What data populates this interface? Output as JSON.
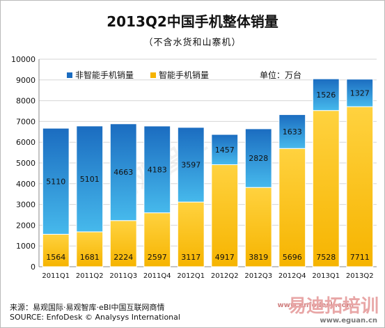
{
  "title": "2013Q2中国手机整体销量",
  "subtitle": "（不含水货和山寨机）",
  "unit_label": "单位：万台",
  "source_cn": "来源：易观国际·易观智库·eBI中国互联网商情",
  "source_en": "SOURCE: EnfoDesk © Analysys International",
  "watermark_text": "易观智库",
  "watermark_logo": "易迪拓培训",
  "watermark_url_top": "www.enfodesk.com",
  "watermark_url": "www.eguan.cn",
  "colors": {
    "smart_top": "#ffd23f",
    "smart_bottom": "#f6b400",
    "nonsmart_top": "#1b6cc0",
    "nonsmart_bottom": "#46b9ec",
    "grid": "#d6d6d6"
  },
  "chart_data": {
    "type": "bar",
    "stacked": true,
    "categories": [
      "2011Q1",
      "2011Q2",
      "2011Q3",
      "2011Q4",
      "2012Q1",
      "2012Q2",
      "2012Q3",
      "2012Q4",
      "2013Q1",
      "2013Q2"
    ],
    "series": [
      {
        "name": "智能手机销量",
        "values": [
          1564,
          1681,
          2224,
          2597,
          3117,
          4917,
          3819,
          5696,
          7528,
          7711
        ]
      },
      {
        "name": "非智能手机销量",
        "values": [
          5110,
          5101,
          4663,
          4183,
          3597,
          1457,
          2828,
          1633,
          1526,
          1327
        ]
      }
    ],
    "y_ticks": [
      0,
      1000,
      2000,
      3000,
      4000,
      5000,
      6000,
      7000,
      8000,
      9000,
      10000
    ],
    "ylim": [
      0,
      10000
    ],
    "grid": true,
    "legend_position": "top-left"
  }
}
